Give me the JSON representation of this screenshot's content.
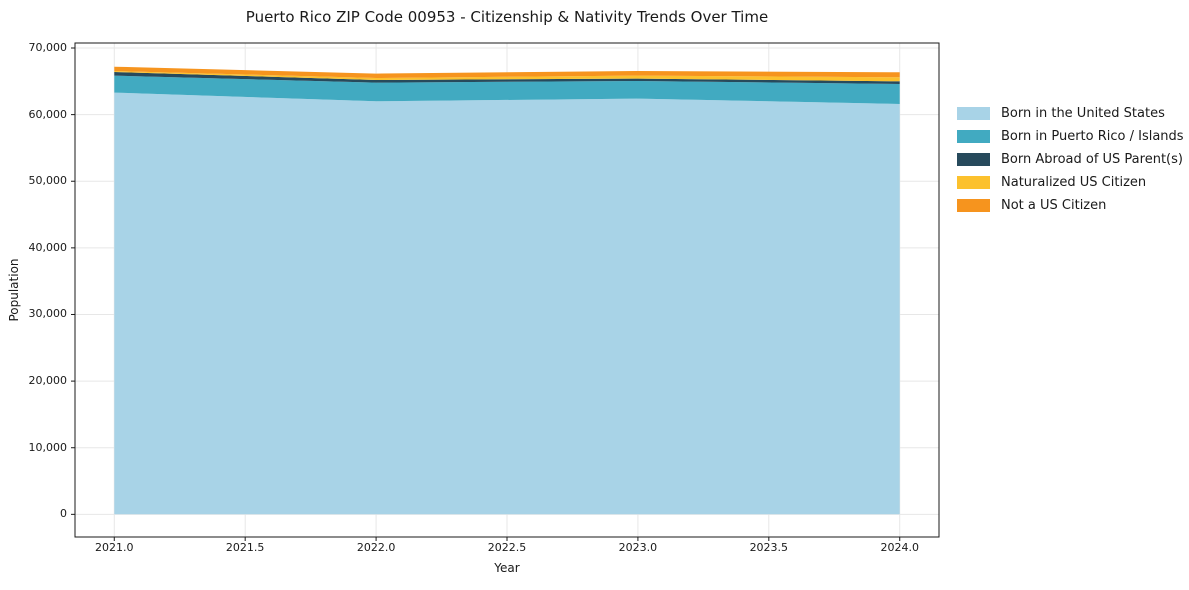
{
  "title": "Puerto Rico ZIP Code 00953 - Citizenship & Nativity Trends Over Time",
  "chart_data": {
    "type": "area",
    "stacked": true,
    "title": "Puerto Rico ZIP Code 00953 - Citizenship & Nativity Trends Over Time",
    "xlabel": "Year",
    "ylabel": "Population",
    "x": [
      2021,
      2022,
      2023,
      2024
    ],
    "xticks": [
      2021.0,
      2021.5,
      2022.0,
      2022.5,
      2023.0,
      2023.5,
      2024.0
    ],
    "xtick_labels": [
      "2021.0",
      "2021.5",
      "2022.0",
      "2022.5",
      "2023.0",
      "2023.5",
      "2024.0"
    ],
    "yticks": [
      0,
      10000,
      20000,
      30000,
      40000,
      50000,
      60000,
      70000
    ],
    "ytick_labels": [
      "0",
      "10,000",
      "20,000",
      "30,000",
      "40,000",
      "50,000",
      "60,000",
      "70,000"
    ],
    "xlim": [
      2020.85,
      2024.15
    ],
    "ylim": [
      -3400,
      70750
    ],
    "grid": true,
    "grid_color": "#e7e7e7",
    "legend_position": "right",
    "series": [
      {
        "name": "Born in the United States",
        "color": "#a8d3e7",
        "values": [
          63300,
          62000,
          62400,
          61600
        ]
      },
      {
        "name": "Born in Puerto Rico / Islands",
        "color": "#41aac1",
        "values": [
          2550,
          2800,
          2650,
          3000
        ]
      },
      {
        "name": "Born Abroad of US Parent(s)",
        "color": "#274a5c",
        "values": [
          550,
          400,
          350,
          400
        ]
      },
      {
        "name": "Naturalized US Citizen",
        "color": "#fcc12d",
        "values": [
          150,
          300,
          450,
          600
        ]
      },
      {
        "name": "Not a US Citizen",
        "color": "#f6941e",
        "values": [
          650,
          650,
          700,
          750
        ]
      }
    ],
    "totals_by_year": [
      67200,
      66150,
      66550,
      66350
    ]
  }
}
